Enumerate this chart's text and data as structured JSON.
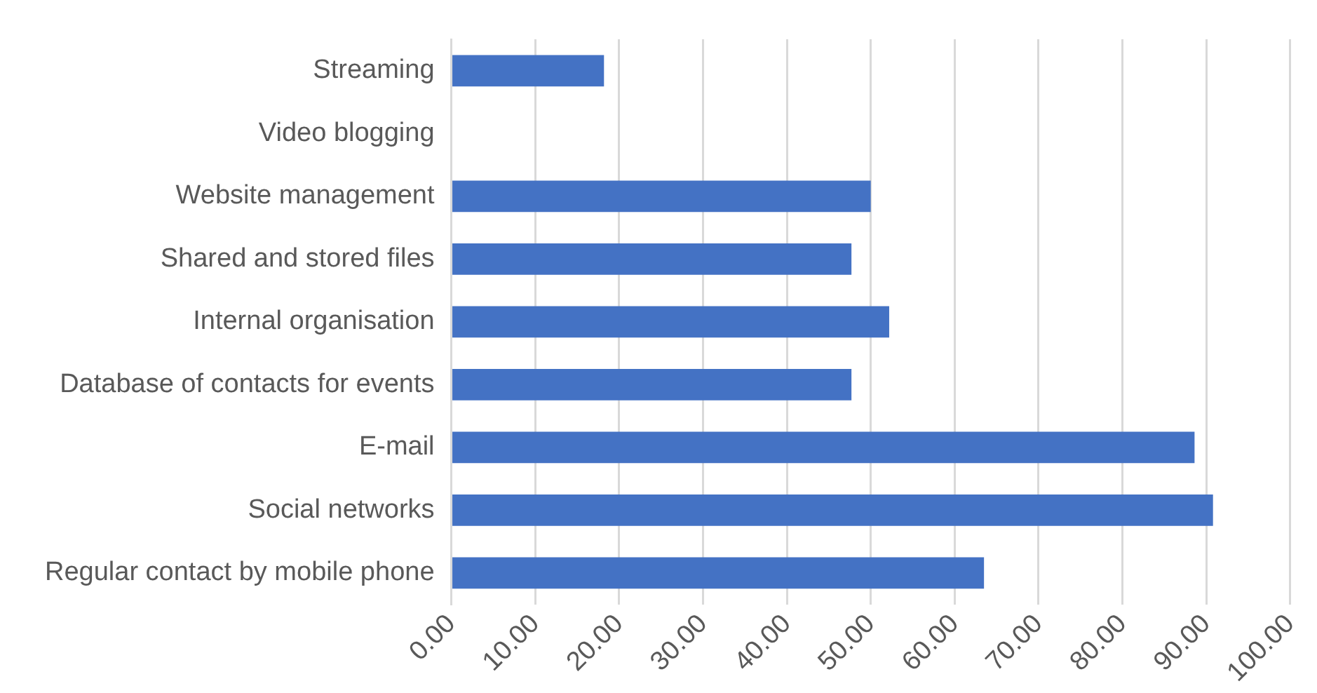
{
  "chart_data": {
    "type": "bar",
    "orientation": "horizontal",
    "categories": [
      "Streaming",
      "Video blogging",
      "Website management",
      "Shared and stored files",
      "Internal organisation",
      "Database of contacts for events",
      "E-mail",
      "Social networks",
      "Regular contact by mobile phone"
    ],
    "values": [
      18.2,
      0,
      50,
      47.7,
      52.2,
      47.7,
      88.6,
      90.8,
      63.5
    ],
    "color": "#4472c4",
    "xlim": [
      0,
      100
    ],
    "xticks": [
      {
        "value": 0,
        "label": "0.00"
      },
      {
        "value": 10,
        "label": "10.00"
      },
      {
        "value": 20,
        "label": "20.00"
      },
      {
        "value": 30,
        "label": "30.00"
      },
      {
        "value": 40,
        "label": "40.00"
      },
      {
        "value": 50,
        "label": "50.00"
      },
      {
        "value": 60,
        "label": "60.00"
      },
      {
        "value": 70,
        "label": "70.00"
      },
      {
        "value": 80,
        "label": "80.00"
      },
      {
        "value": 90,
        "label": "90.00"
      },
      {
        "value": 100,
        "label": "100.00"
      }
    ],
    "grid": "x",
    "legend": false
  }
}
